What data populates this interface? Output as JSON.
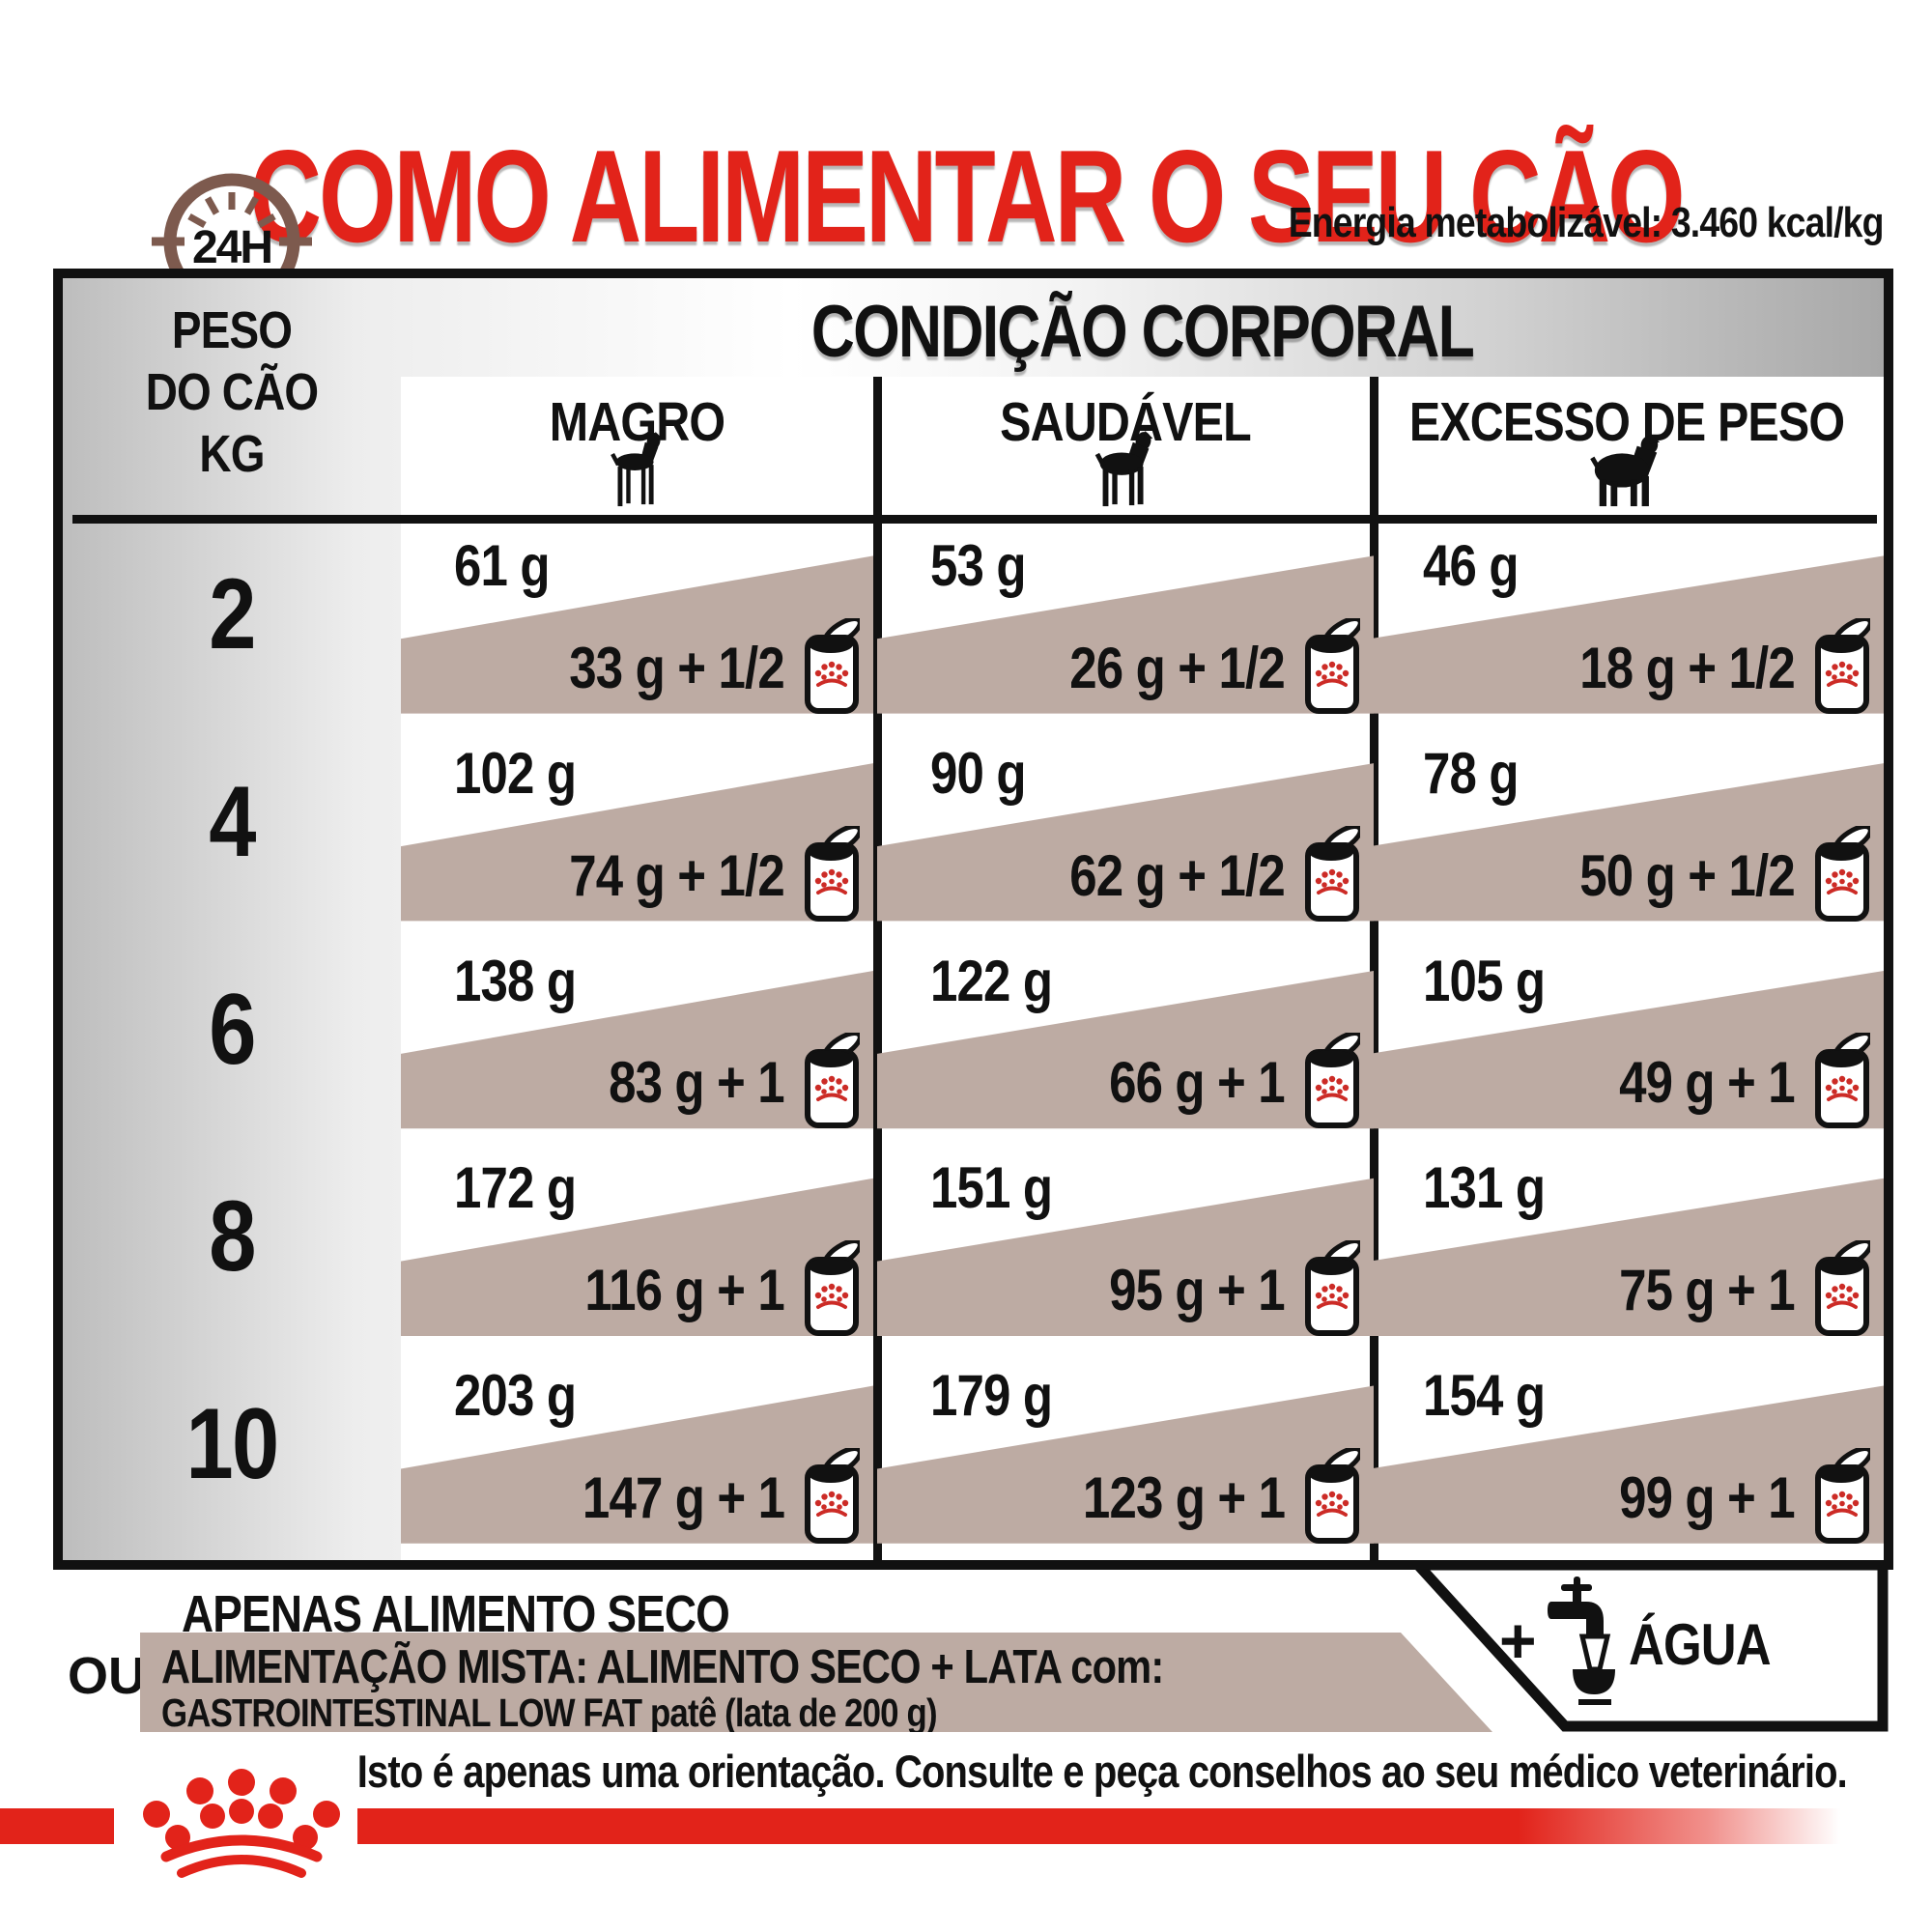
{
  "title": "COMO ALIMENTAR O SEU CÃO",
  "clock_label": "24H",
  "energy_line": "Energia metabolizável: 3.460 kcal/kg",
  "table": {
    "condition_header": "CONDIÇÃO CORPORAL",
    "weight_header_lines": [
      "PESO",
      "DO CÃO",
      "KG"
    ],
    "columns": [
      {
        "label": "MAGRO",
        "icon": "thin-dog-icon"
      },
      {
        "label": "SAUDÁVEL",
        "icon": "healthy-dog-icon"
      },
      {
        "label": "EXCESSO DE PESO",
        "icon": "overweight-dog-icon"
      }
    ],
    "rows": [
      {
        "weight": "2",
        "cells": [
          {
            "dry": "61 g",
            "mixed": "33 g + 1/2"
          },
          {
            "dry": "53 g",
            "mixed": "26 g + 1/2"
          },
          {
            "dry": "46 g",
            "mixed": "18 g + 1/2"
          }
        ]
      },
      {
        "weight": "4",
        "cells": [
          {
            "dry": "102 g",
            "mixed": "74 g + 1/2"
          },
          {
            "dry": "90 g",
            "mixed": "62 g + 1/2"
          },
          {
            "dry": "78 g",
            "mixed": "50 g + 1/2"
          }
        ]
      },
      {
        "weight": "6",
        "cells": [
          {
            "dry": "138 g",
            "mixed": "83 g +  1"
          },
          {
            "dry": "122 g",
            "mixed": "66 g +  1"
          },
          {
            "dry": "105 g",
            "mixed": "49 g +  1"
          }
        ]
      },
      {
        "weight": "8",
        "cells": [
          {
            "dry": "172 g",
            "mixed": "116 g +  1"
          },
          {
            "dry": "151 g",
            "mixed": "95 g +  1"
          },
          {
            "dry": "131 g",
            "mixed": "75 g +  1"
          }
        ]
      },
      {
        "weight": "10",
        "cells": [
          {
            "dry": "203 g",
            "mixed": "147 g +  1"
          },
          {
            "dry": "179 g",
            "mixed": "123 g +  1"
          },
          {
            "dry": "154 g",
            "mixed": "99 g +  1"
          }
        ]
      }
    ]
  },
  "legend": {
    "dry_only_label": "APENAS ALIMENTO SECO",
    "or_label": "OU",
    "mixed_label_line1": "ALIMENTAÇÃO MISTA: ALIMENTO SECO + LATA com:",
    "mixed_label_line2": "GASTROINTESTINAL LOW FAT patê (lata de 200 g)",
    "water_plus": "+",
    "water_label": "ÁGUA"
  },
  "footer": {
    "disclaimer": "Isto é apenas uma orientação. Consulte e peça conselhos ao seu médico veterinário."
  },
  "icons": {
    "clock": "clock-24h-icon",
    "thin_dog": "thin-dog-icon",
    "healthy_dog": "healthy-dog-icon",
    "overweight_dog": "overweight-dog-icon",
    "can": "wet-food-can-icon",
    "tap": "water-tap-icon",
    "crown": "royal-canin-crown-logo"
  },
  "colors": {
    "accent_red": "#e2231a",
    "taupe_band": "#bdaba3",
    "clock_brown": "#7d5a4e",
    "text_black": "#111111"
  }
}
